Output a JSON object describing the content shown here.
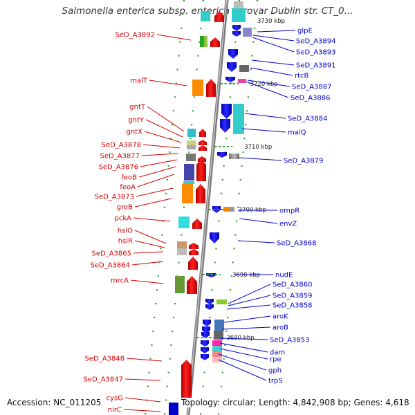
{
  "title": "Salmonella enterica subsp. enterica serovar Dublin str. CT_0...",
  "footer": {
    "accession": "Accession: NC_011205",
    "topology": "Topology: circular; Length: 4,842,908 bp; Genes: 4,618"
  },
  "colors": {
    "left_labels": "#d40000",
    "right_labels": "#0000cc",
    "backbone": "#808080"
  },
  "ticks": [
    "3720 kbp",
    "3710 kbp",
    "3700 kbp",
    "3690 kbp",
    "3680 kbp"
  ],
  "left_genes": [
    "SeD_A3892",
    "malT",
    "gntT",
    "gntY",
    "gntX",
    "SeD_A3878",
    "SeD_A3877",
    "SeD_A3876",
    "feoB",
    "feoA",
    "SeD_A3873",
    "greB",
    "pckA",
    "hslO",
    "hslR",
    "SeD_A3865",
    "SeD_A3864",
    "mrcA",
    "SeD_A3848",
    "SeD_A3847",
    "cysG",
    "nirC"
  ],
  "right_genes": [
    "glpE",
    "SeD_A3894",
    "SeD_A3893",
    "SeD_A3891",
    "rtcB",
    "SeD_A3887",
    "SeD_A3886",
    "SeD_A3884",
    "malQ",
    "SeD_A3879",
    "ompR",
    "envZ",
    "SeD_A3868",
    "nudE",
    "SeD_A3860",
    "SeD_A3859",
    "SeD_A3858",
    "aroK",
    "aroB",
    "SeD_A3853",
    "dam",
    "rpe",
    "gph",
    "trpS"
  ],
  "top_partial_label": "3730 kbp"
}
